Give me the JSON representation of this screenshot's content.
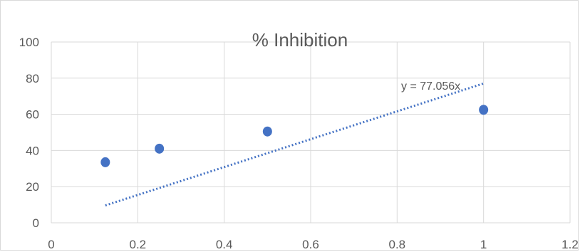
{
  "chart_data": {
    "type": "scatter",
    "title": "% Inhibition",
    "xlabel": "",
    "ylabel": "",
    "xlim": [
      0,
      1.2
    ],
    "ylim": [
      0,
      100
    ],
    "x_ticks": [
      0,
      0.2,
      0.4,
      0.6,
      0.8,
      1,
      1.2
    ],
    "x_tick_labels": [
      "0",
      "0.2",
      "0.4",
      "0.6",
      "0.8",
      "1",
      "1.2"
    ],
    "y_ticks": [
      0,
      20,
      40,
      60,
      80,
      100
    ],
    "y_tick_labels": [
      "0",
      "20",
      "40",
      "60",
      "80",
      "100"
    ],
    "grid": true,
    "legend": "none",
    "series": [
      {
        "x": [
          0.125,
          0.25,
          0.5,
          1
        ],
        "y": [
          33.5,
          41,
          50.5,
          62.5
        ],
        "color": "#4472c4"
      }
    ],
    "trendline": {
      "slope": 77.056,
      "x_range": [
        0.125,
        1
      ],
      "equation": "y = 77.056x",
      "style": "dotted",
      "color": "#4472c4"
    }
  }
}
